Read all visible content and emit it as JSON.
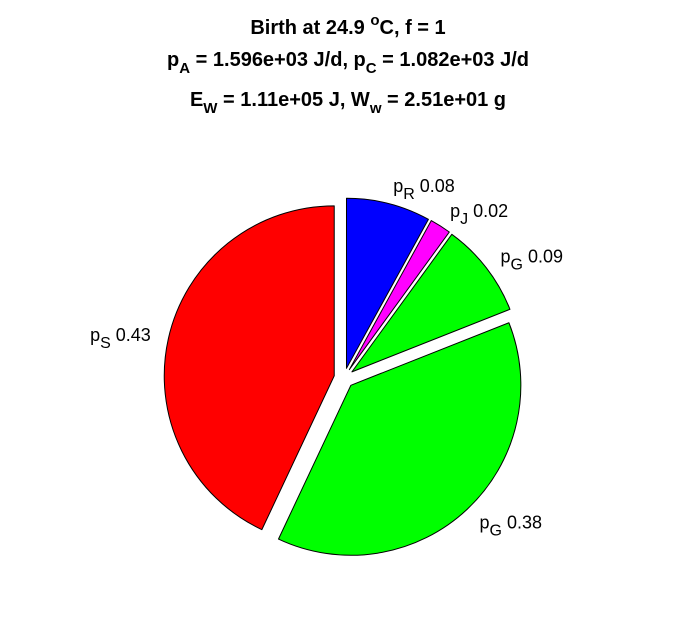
{
  "chart_data": {
    "type": "pie",
    "title_lines": [
      [
        {
          "t": "Birth at 24.9 "
        },
        {
          "t": "o",
          "s": "sup"
        },
        {
          "t": "C, f = 1"
        }
      ],
      [
        {
          "t": "p"
        },
        {
          "t": "A",
          "s": "sub"
        },
        {
          "t": " = 1.596e+03 J/d, p"
        },
        {
          "t": "C",
          "s": "sub"
        },
        {
          "t": " = 1.082e+03 J/d"
        }
      ],
      [
        {
          "t": "E"
        },
        {
          "t": "W",
          "s": "sub"
        },
        {
          "t": " = 1.11e+05 J, W"
        },
        {
          "t": "w",
          "s": "sub"
        },
        {
          "t": " = 2.51e+01 g"
        }
      ]
    ],
    "slices": [
      {
        "symbol": "p",
        "subscript": "R",
        "value": 0.08,
        "label": "0.08",
        "color": "#0000ff",
        "exploded": true
      },
      {
        "symbol": "p",
        "subscript": "J",
        "value": 0.02,
        "label": "0.02",
        "color": "#ff00ff",
        "exploded": true
      },
      {
        "symbol": "p",
        "subscript": "G",
        "value": 0.09,
        "label": "0.09",
        "color": "#00ff00",
        "exploded": true
      },
      {
        "symbol": "p",
        "subscript": "G",
        "value": 0.38,
        "label": "0.38",
        "color": "#00ff00",
        "exploded": true
      },
      {
        "symbol": "p",
        "subscript": "S",
        "value": 0.43,
        "label": "0.43",
        "color": "#ff0000",
        "exploded": true
      }
    ],
    "start_angle_deg": 90,
    "direction": "clockwise",
    "legend": "none",
    "grid": false
  }
}
